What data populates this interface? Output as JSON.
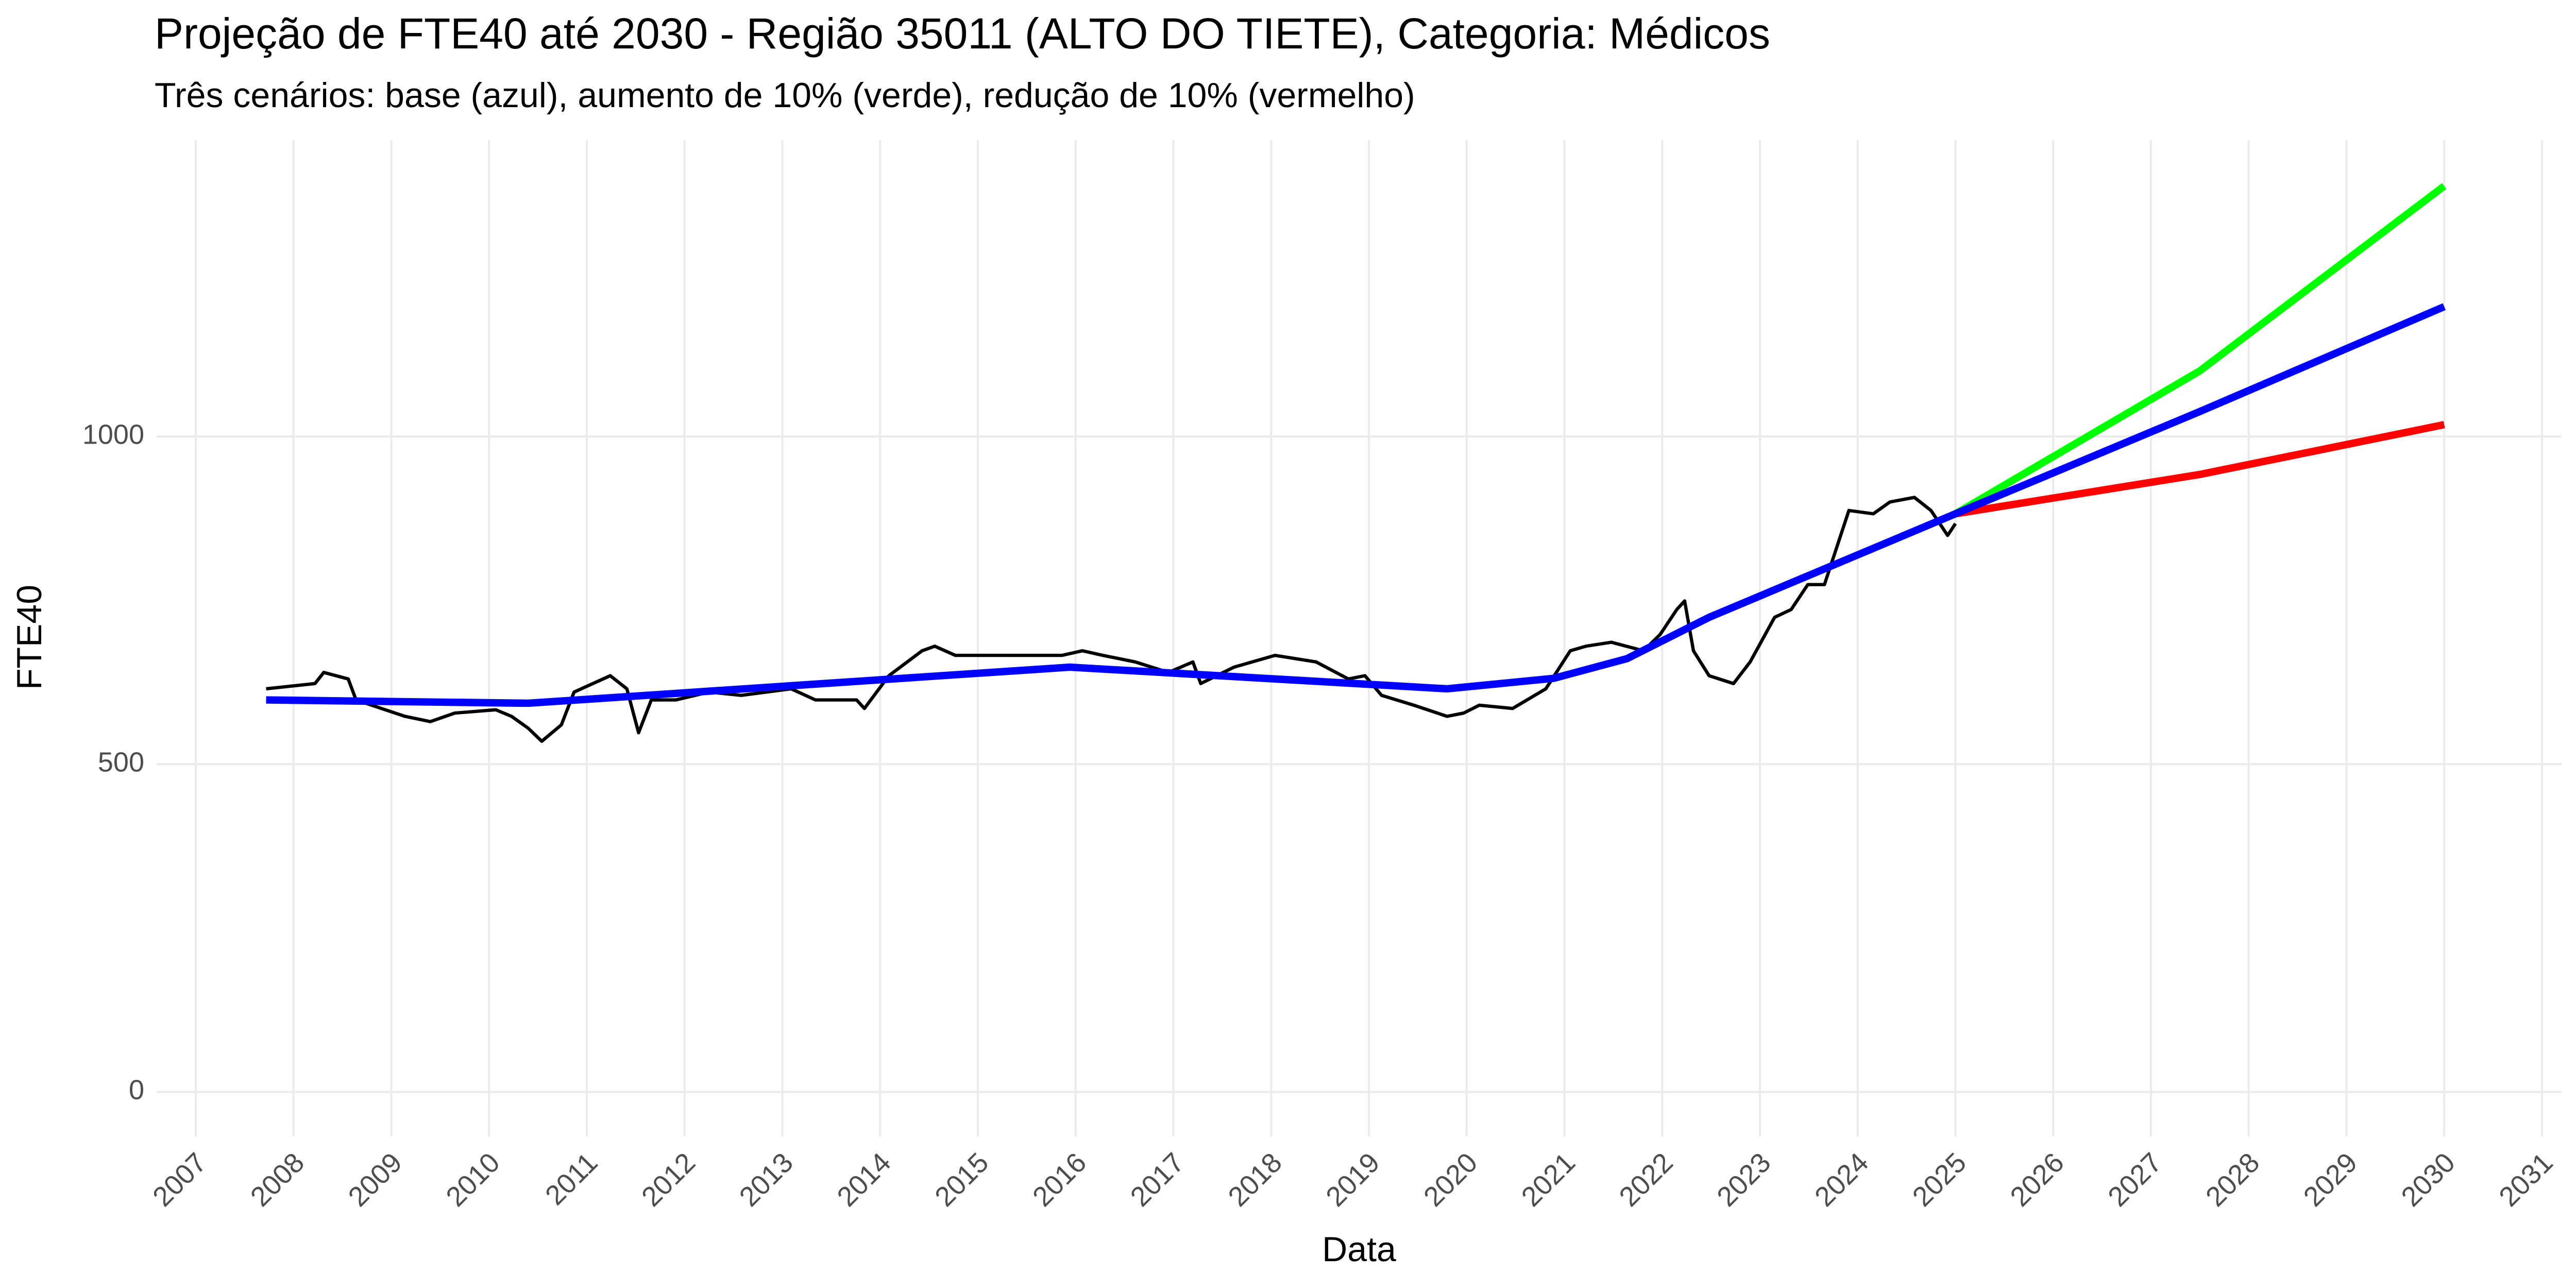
{
  "chart_data": {
    "type": "line",
    "title": "Projeção de FTE40 até 2030 - Região 35011 (ALTO DO TIETE), Categoria: Médicos",
    "subtitle": "Três cenários: base (azul), aumento de 10% (verde), redução de 10% (vermelho)",
    "x_label": "Data",
    "y_label": "FTE40",
    "xlim": [
      2006.6,
      2031.2
    ],
    "ylim": [
      -68,
      1452
    ],
    "xticks": [
      2007,
      2008,
      2009,
      2010,
      2011,
      2012,
      2013,
      2014,
      2015,
      2016,
      2017,
      2018,
      2019,
      2020,
      2021,
      2022,
      2023,
      2024,
      2025,
      2026,
      2027,
      2028,
      2029,
      2030,
      2031
    ],
    "yticks": [
      0,
      500,
      1000
    ],
    "grid": true,
    "series": [
      {
        "color": "#000000",
        "x": [
          2007.72,
          2008.22,
          2008.31,
          2008.56,
          2008.64,
          2009.14,
          2009.4,
          2009.65,
          2010.07,
          2010.23,
          2010.4,
          2010.54,
          2010.74,
          2010.87,
          2011.24,
          2011.41,
          2011.53,
          2011.66,
          2011.91,
          2012.25,
          2012.58,
          2013.09,
          2013.34,
          2013.76,
          2013.84,
          2014.09,
          2014.43,
          2014.56,
          2014.77,
          2015.1,
          2015.35,
          2015.6,
          2015.86,
          2016.07,
          2016.28,
          2016.61,
          2016.95,
          2017.2,
          2017.28,
          2017.62,
          2018.04,
          2018.46,
          2018.79,
          2018.96,
          2019.13,
          2019.46,
          2019.8,
          2019.97,
          2020.13,
          2020.47,
          2020.81,
          2021.06,
          2021.22,
          2021.48,
          2021.81,
          2021.98,
          2022.15,
          2022.23,
          2022.32,
          2022.48,
          2022.73,
          2022.9,
          2023.15,
          2023.32,
          2023.49,
          2023.66,
          2023.91,
          2024.16,
          2024.33,
          2024.58,
          2024.75,
          2024.92,
          2025.0
        ],
        "values": [
          615,
          623,
          640,
          630,
          598,
          573,
          565,
          578,
          583,
          573,
          555,
          535,
          560,
          610,
          635,
          615,
          548,
          598,
          598,
          610,
          605,
          615,
          598,
          598,
          585,
          635,
          673,
          680,
          666,
          666,
          666,
          666,
          666,
          673,
          666,
          656,
          640,
          656,
          623,
          648,
          666,
          656,
          630,
          635,
          605,
          590,
          573,
          578,
          590,
          585,
          615,
          673,
          680,
          686,
          673,
          698,
          736,
          749,
          673,
          635,
          623,
          656,
          724,
          736,
          774,
          774,
          887,
          882,
          900,
          907,
          887,
          849,
          867
        ],
        "width": 2
      },
      {
        "color": "#00ff00",
        "x": [
          2025.0,
          2027.5,
          2030.0
        ],
        "values": [
          882,
          1100,
          1382
        ],
        "width": 4.5
      },
      {
        "color": "#ff0000",
        "x": [
          2025.0,
          2027.5,
          2030.0
        ],
        "values": [
          882,
          942,
          1018
        ],
        "width": 4.5
      },
      {
        "color": "#0000ff",
        "x": [
          2007.72,
          2010.4,
          2015.94,
          2019.8,
          2020.89,
          2021.64,
          2022.48,
          2025.0,
          2027.5,
          2030.0
        ],
        "values": [
          598,
          593,
          648,
          615,
          631,
          661,
          724,
          882,
          1038,
          1198
        ],
        "width": 4.5
      }
    ]
  }
}
